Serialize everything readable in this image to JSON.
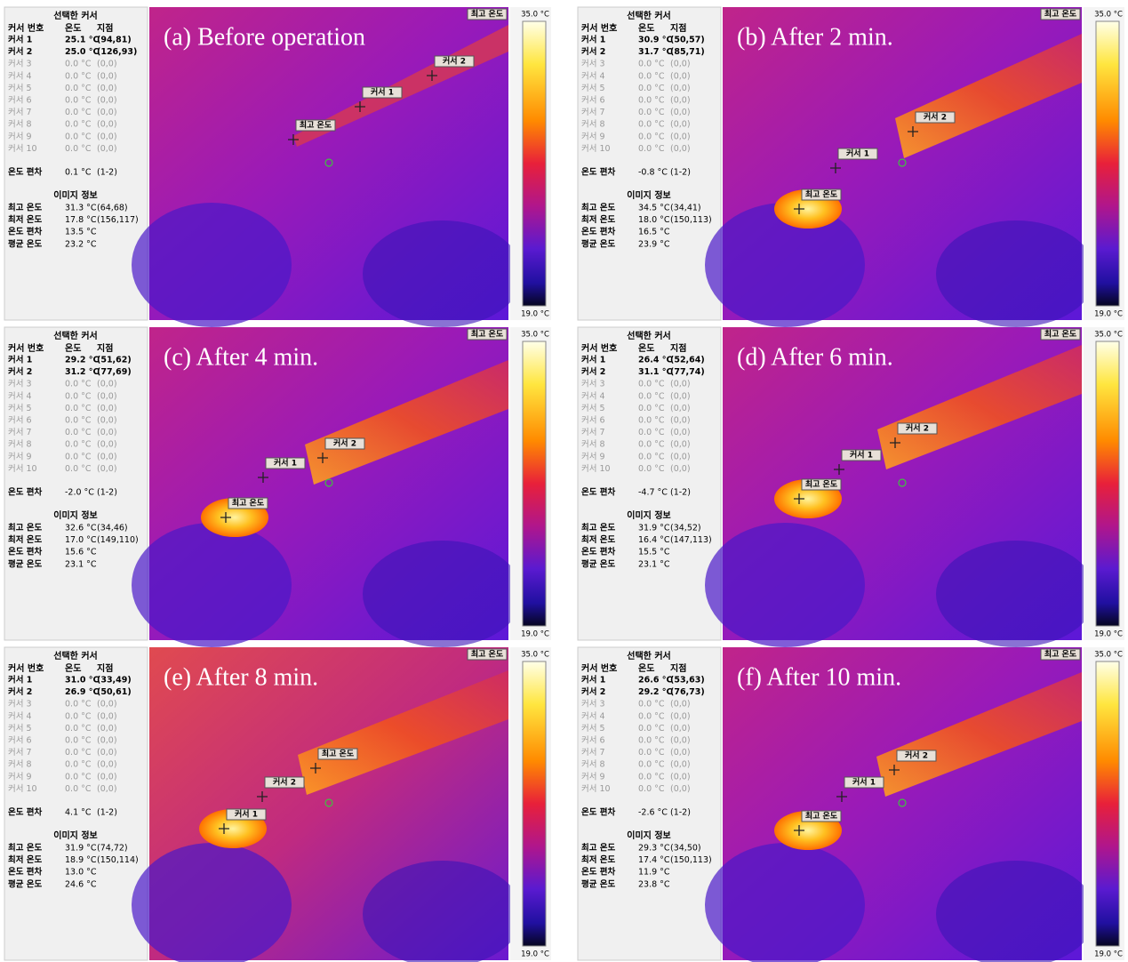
{
  "panels": [
    {
      "caption": "(a) Before operation",
      "scale_max": "35.0 °C",
      "scale_min": "19.0 °C",
      "corner_label": "최고 온도",
      "cursor_table": {
        "title": "선택한 커서",
        "columns": [
          "커서 번호",
          "온도",
          "지점"
        ],
        "rows": [
          [
            "커서 1",
            "25.1 °C",
            "(94,81)"
          ],
          [
            "커서 2",
            "25.0 °C",
            "(126,93)"
          ],
          [
            "커서 3",
            "0.0 °C",
            "(0,0)"
          ],
          [
            "커서 4",
            "0.0 °C",
            "(0,0)"
          ],
          [
            "커서 5",
            "0.0 °C",
            "(0,0)"
          ],
          [
            "커서 6",
            "0.0 °C",
            "(0,0)"
          ],
          [
            "커서 7",
            "0.0 °C",
            "(0,0)"
          ],
          [
            "커서 8",
            "0.0 °C",
            "(0,0)"
          ],
          [
            "커서 9",
            "0.0 °C",
            "(0,0)"
          ],
          [
            "커서 10",
            "0.0 °C",
            "(0,0)"
          ]
        ]
      },
      "deviation": {
        "label": "온도 편차",
        "value": "0.1 °C",
        "pair": "(1-2)"
      },
      "image_info": {
        "title": "이미지 정보",
        "rows": [
          [
            "최고 온도",
            "31.3 °C",
            "(64,68)"
          ],
          [
            "최저 온도",
            "17.8 °C",
            "(156,117)"
          ],
          [
            "온도 편차",
            "13.5 °C"
          ],
          [
            "평균 온도",
            "23.2 °C"
          ]
        ]
      },
      "markers": [
        "커서 2",
        "커서 1",
        "최고 온도"
      ]
    },
    {
      "caption": "(b) After 2 min.",
      "scale_max": "35.0 °C",
      "scale_min": "19.0 °C",
      "corner_label": "최고 온도",
      "cursor_table": {
        "title": "선택한 커서",
        "columns": [
          "커서 번호",
          "온도",
          "지점"
        ],
        "rows": [
          [
            "커서 1",
            "30.9 °C",
            "(50,57)"
          ],
          [
            "커서 2",
            "31.7 °C",
            "(85,71)"
          ],
          [
            "커서 3",
            "0.0 °C",
            "(0,0)"
          ],
          [
            "커서 4",
            "0.0 °C",
            "(0,0)"
          ],
          [
            "커서 5",
            "0.0 °C",
            "(0,0)"
          ],
          [
            "커서 6",
            "0.0 °C",
            "(0,0)"
          ],
          [
            "커서 7",
            "0.0 °C",
            "(0,0)"
          ],
          [
            "커서 8",
            "0.0 °C",
            "(0,0)"
          ],
          [
            "커서 9",
            "0.0 °C",
            "(0,0)"
          ],
          [
            "커서 10",
            "0.0 °C",
            "(0,0)"
          ]
        ]
      },
      "deviation": {
        "label": "온도 편차",
        "value": "-0.8 °C",
        "pair": "(1-2)"
      },
      "image_info": {
        "title": "이미지 정보",
        "rows": [
          [
            "최고 온도",
            "34.5 °C",
            "(34,41)"
          ],
          [
            "최저 온도",
            "18.0 °C",
            "(150,113)"
          ],
          [
            "온도 편차",
            "16.5 °C"
          ],
          [
            "평균 온도",
            "23.9 °C"
          ]
        ]
      },
      "markers": [
        "커서 2",
        "커서 1",
        "최고 온도"
      ]
    },
    {
      "caption": "(c) After 4 min.",
      "scale_max": "35.0 °C",
      "scale_min": "19.0 °C",
      "corner_label": "최고 온도",
      "cursor_table": {
        "title": "선택한 커서",
        "columns": [
          "커서 번호",
          "온도",
          "지점"
        ],
        "rows": [
          [
            "커서 1",
            "29.2 °C",
            "(51,62)"
          ],
          [
            "커서 2",
            "31.2 °C",
            "(77,69)"
          ],
          [
            "커서 3",
            "0.0 °C",
            "(0,0)"
          ],
          [
            "커서 4",
            "0.0 °C",
            "(0,0)"
          ],
          [
            "커서 5",
            "0.0 °C",
            "(0,0)"
          ],
          [
            "커서 6",
            "0.0 °C",
            "(0,0)"
          ],
          [
            "커서 7",
            "0.0 °C",
            "(0,0)"
          ],
          [
            "커서 8",
            "0.0 °C",
            "(0,0)"
          ],
          [
            "커서 9",
            "0.0 °C",
            "(0,0)"
          ],
          [
            "커서 10",
            "0.0 °C",
            "(0,0)"
          ]
        ]
      },
      "deviation": {
        "label": "온도 편차",
        "value": "-2.0 °C",
        "pair": "(1-2)"
      },
      "image_info": {
        "title": "이미지 정보",
        "rows": [
          [
            "최고 온도",
            "32.6 °C",
            "(34,46)"
          ],
          [
            "최저 온도",
            "17.0 °C",
            "(149,110)"
          ],
          [
            "온도 편차",
            "15.6 °C"
          ],
          [
            "평균 온도",
            "23.1 °C"
          ]
        ]
      },
      "markers": [
        "커서 2",
        "커서 1",
        "최고 온도"
      ]
    },
    {
      "caption": "(d) After 6 min.",
      "scale_max": "35.0 °C",
      "scale_min": "19.0 °C",
      "corner_label": "최고 온도",
      "cursor_table": {
        "title": "선택한 커서",
        "columns": [
          "커서 번호",
          "온도",
          "지점"
        ],
        "rows": [
          [
            "커서 1",
            "26.4 °C",
            "(52,64)"
          ],
          [
            "커서 2",
            "31.1 °C",
            "(77,74)"
          ],
          [
            "커서 3",
            "0.0 °C",
            "(0,0)"
          ],
          [
            "커서 4",
            "0.0 °C",
            "(0,0)"
          ],
          [
            "커서 5",
            "0.0 °C",
            "(0,0)"
          ],
          [
            "커서 6",
            "0.0 °C",
            "(0,0)"
          ],
          [
            "커서 7",
            "0.0 °C",
            "(0,0)"
          ],
          [
            "커서 8",
            "0.0 °C",
            "(0,0)"
          ],
          [
            "커서 9",
            "0.0 °C",
            "(0,0)"
          ],
          [
            "커서 10",
            "0.0 °C",
            "(0,0)"
          ]
        ]
      },
      "deviation": {
        "label": "온도 편차",
        "value": "-4.7 °C",
        "pair": "(1-2)"
      },
      "image_info": {
        "title": "이미지 정보",
        "rows": [
          [
            "최고 온도",
            "31.9 °C",
            "(34,52)"
          ],
          [
            "최저 온도",
            "16.4 °C",
            "(147,113)"
          ],
          [
            "온도 편차",
            "15.5 °C"
          ],
          [
            "평균 온도",
            "23.1 °C"
          ]
        ]
      },
      "markers": [
        "커서 2",
        "커서 1",
        "최고 온도"
      ]
    },
    {
      "caption": "(e) After 8 min.",
      "scale_max": "35.0 °C",
      "scale_min": "19.0 °C",
      "corner_label": "최고 온도",
      "cursor_table": {
        "title": "선택한 커서",
        "columns": [
          "커서 번호",
          "온도",
          "지점"
        ],
        "rows": [
          [
            "커서 1",
            "31.0 °C",
            "(33,49)"
          ],
          [
            "커서 2",
            "26.9 °C",
            "(50,61)"
          ],
          [
            "커서 3",
            "0.0 °C",
            "(0,0)"
          ],
          [
            "커서 4",
            "0.0 °C",
            "(0,0)"
          ],
          [
            "커서 5",
            "0.0 °C",
            "(0,0)"
          ],
          [
            "커서 6",
            "0.0 °C",
            "(0,0)"
          ],
          [
            "커서 7",
            "0.0 °C",
            "(0,0)"
          ],
          [
            "커서 8",
            "0.0 °C",
            "(0,0)"
          ],
          [
            "커서 9",
            "0.0 °C",
            "(0,0)"
          ],
          [
            "커서 10",
            "0.0 °C",
            "(0,0)"
          ]
        ]
      },
      "deviation": {
        "label": "온도 편차",
        "value": "4.1 °C",
        "pair": "(1-2)"
      },
      "image_info": {
        "title": "이미지 정보",
        "rows": [
          [
            "최고 온도",
            "31.9 °C",
            "(74,72)"
          ],
          [
            "최저 온도",
            "18.9 °C",
            "(150,114)"
          ],
          [
            "온도 편차",
            "13.0 °C"
          ],
          [
            "평균 온도",
            "24.6 °C"
          ]
        ]
      },
      "markers": [
        "최고 온도",
        "커서 2",
        "커서 1"
      ]
    },
    {
      "caption": "(f) After 10 min.",
      "scale_max": "35.0 °C",
      "scale_min": "19.0 °C",
      "corner_label": "최고 온도",
      "cursor_table": {
        "title": "선택한 커서",
        "columns": [
          "커서 번호",
          "온도",
          "지점"
        ],
        "rows": [
          [
            "커서 1",
            "26.6 °C",
            "(53,63)"
          ],
          [
            "커서 2",
            "29.2 °C",
            "(76,73)"
          ],
          [
            "커서 3",
            "0.0 °C",
            "(0,0)"
          ],
          [
            "커서 4",
            "0.0 °C",
            "(0,0)"
          ],
          [
            "커서 5",
            "0.0 °C",
            "(0,0)"
          ],
          [
            "커서 6",
            "0.0 °C",
            "(0,0)"
          ],
          [
            "커서 7",
            "0.0 °C",
            "(0,0)"
          ],
          [
            "커서 8",
            "0.0 °C",
            "(0,0)"
          ],
          [
            "커서 9",
            "0.0 °C",
            "(0,0)"
          ],
          [
            "커서 10",
            "0.0 °C",
            "(0,0)"
          ]
        ]
      },
      "deviation": {
        "label": "온도 편차",
        "value": "-2.6 °C",
        "pair": "(1-2)"
      },
      "image_info": {
        "title": "이미지 정보",
        "rows": [
          [
            "최고 온도",
            "29.3 °C",
            "(34,50)"
          ],
          [
            "최저 온도",
            "17.4 °C",
            "(150,113)"
          ],
          [
            "온도 편차",
            "11.9 °C"
          ],
          [
            "평균 온도",
            "23.8 °C"
          ]
        ]
      },
      "markers": [
        "커서 2",
        "커서 1",
        "최고 온도"
      ]
    }
  ]
}
